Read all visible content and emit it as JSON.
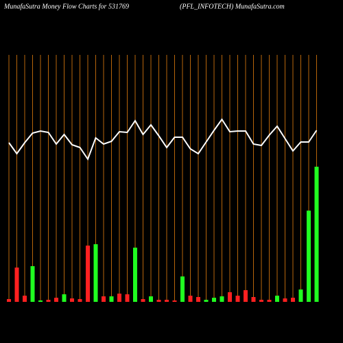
{
  "chart_data": {
    "type": "bar",
    "title": "MunafaSutra  Money Flow  Charts for 531769",
    "subtitle": "(PFL_INFOTECH) MunafaSutra.com",
    "ylim": [
      0,
      360
    ],
    "grid_color": "#b8660b",
    "series": [
      {
        "type": "bar",
        "colors": [
          "#ff2020",
          "#ff2020",
          "#ff2020",
          "#20ff20",
          "#20ff20",
          "#ff2020",
          "#ff2020",
          "#20ff20",
          "#ff2020",
          "#ff2020",
          "#ff2020",
          "#20ff20",
          "#ff2020",
          "#20ff20",
          "#ff2020",
          "#ff2020",
          "#20ff20",
          "#ff2020",
          "#20ff20",
          "#ff2020",
          "#ff2020",
          "#ff2020",
          "#20ff20",
          "#ff2020",
          "#ff2020",
          "#20ff20",
          "#20ff20",
          "#20ff20",
          "#ff2020",
          "#ff2020",
          "#ff2020",
          "#ff2020",
          "#ff2020",
          "#ff2020",
          "#20ff20",
          "#ff2020",
          "#ff2020",
          "#20ff20",
          "#20ff20",
          "#20ff20"
        ],
        "values": [
          4,
          50,
          9,
          52,
          2,
          3,
          6,
          11,
          5,
          4,
          82,
          84,
          8,
          8,
          12,
          11,
          79,
          4,
          8,
          3,
          3,
          2,
          37,
          9,
          7,
          3,
          6,
          8,
          14,
          9,
          17,
          7,
          3,
          3,
          9,
          5,
          6,
          18,
          133,
          197
        ]
      },
      {
        "type": "line",
        "color": "#ffffff",
        "values": [
          232,
          216,
          232,
          246,
          249,
          247,
          230,
          244,
          229,
          225,
          208,
          239,
          230,
          234,
          248,
          247,
          264,
          244,
          258,
          242,
          225,
          240,
          240,
          223,
          216,
          233,
          250,
          266,
          248,
          249,
          249,
          230,
          228,
          243,
          256,
          238,
          220,
          233,
          233,
          250
        ]
      }
    ]
  }
}
